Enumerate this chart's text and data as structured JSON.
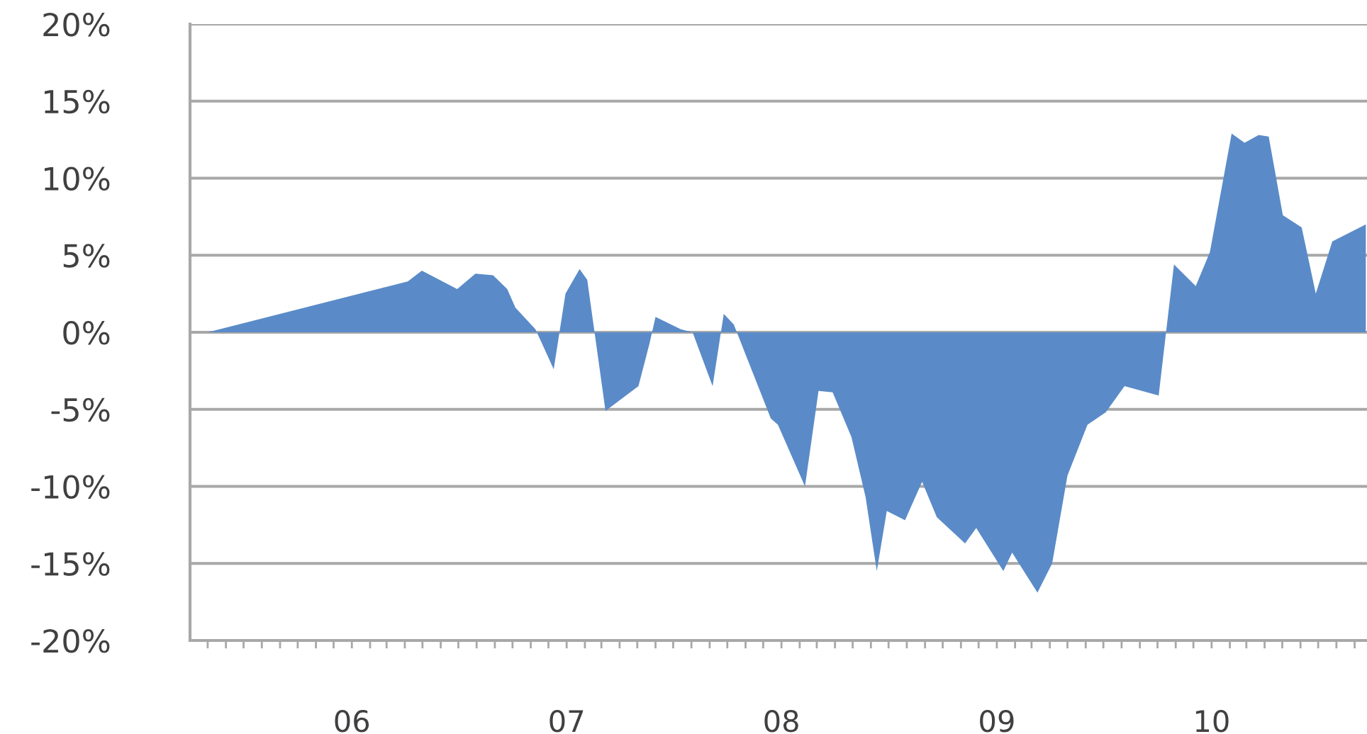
{
  "chart_data": {
    "type": "area",
    "color": "#5a8bc8",
    "x": [
      "2005-05-01",
      "2006-04-06",
      "2006-04-30",
      "2006-06-29",
      "2006-07-30",
      "2006-08-29",
      "2006-09-22",
      "2006-10-06",
      "2006-11-09",
      "2006-12-10",
      "2006-12-30",
      "2007-01-23",
      "2007-02-05",
      "2007-03-08",
      "2007-05-03",
      "2007-05-22",
      "2007-06-01",
      "2007-07-14",
      "2007-08-03",
      "2007-09-06",
      "2007-09-25",
      "2007-10-12",
      "2007-11-13",
      "2007-12-14",
      "2007-12-26",
      "2008-02-10",
      "2008-03-04",
      "2008-03-28",
      "2008-04-29",
      "2008-05-23",
      "2008-06-11",
      "2008-06-28",
      "2008-07-29",
      "2008-08-27",
      "2008-09-21",
      "2008-11-08",
      "2008-11-27",
      "2009-01-12",
      "2009-01-27",
      "2009-03-11",
      "2009-04-05",
      "2009-05-01",
      "2009-06-04",
      "2009-07-05",
      "2009-08-06",
      "2009-10-03",
      "2009-10-29",
      "2009-12-05",
      "2009-12-29",
      "2010-02-04",
      "2010-02-26",
      "2010-03-22",
      "2010-04-08",
      "2010-05-02",
      "2010-06-03",
      "2010-06-27",
      "2010-07-25",
      "2010-09-20"
    ],
    "values": [
      0,
      3.3,
      4.0,
      2.8,
      3.8,
      3.7,
      2.8,
      1.6,
      0.2,
      -2.4,
      2.5,
      4.1,
      3.4,
      -5.1,
      -3.5,
      -0.7,
      1.0,
      0.2,
      0,
      -3.5,
      1.2,
      0.5,
      -2.6,
      -5.6,
      -6.0,
      -10.0,
      -3.8,
      -3.9,
      -6.8,
      -10.7,
      -15.5,
      -11.6,
      -12.2,
      -9.7,
      -12.0,
      -13.7,
      -12.7,
      -15.5,
      -14.3,
      -16.9,
      -15.0,
      -9.3,
      -6.0,
      -5.2,
      -3.5,
      -4.1,
      4.4,
      3.0,
      5.2,
      12.9,
      12.3,
      12.8,
      12.7,
      7.6,
      6.8,
      2.5,
      5.9,
      7.0
    ],
    "xlim": [
      "2005-04-01",
      "2010-09-22"
    ],
    "xticks": [
      {
        "value": "2005-05-01",
        "label": null
      },
      {
        "value": "2005-06-01",
        "label": null
      },
      {
        "value": "2005-07-01",
        "label": null
      },
      {
        "value": "2005-08-01",
        "label": null
      },
      {
        "value": "2005-09-01",
        "label": null
      },
      {
        "value": "2005-10-01",
        "label": null
      },
      {
        "value": "2005-11-01",
        "label": null
      },
      {
        "value": "2005-12-01",
        "label": null
      },
      {
        "value": "2006-01-01",
        "label": "06"
      },
      {
        "value": "2006-02-01",
        "label": null
      },
      {
        "value": "2006-03-01",
        "label": null
      },
      {
        "value": "2006-04-01",
        "label": null
      },
      {
        "value": "2006-05-01",
        "label": null
      },
      {
        "value": "2006-06-01",
        "label": null
      },
      {
        "value": "2006-07-01",
        "label": null
      },
      {
        "value": "2006-08-01",
        "label": null
      },
      {
        "value": "2006-09-01",
        "label": null
      },
      {
        "value": "2006-10-01",
        "label": null
      },
      {
        "value": "2006-11-01",
        "label": null
      },
      {
        "value": "2006-12-01",
        "label": null
      },
      {
        "value": "2007-01-01",
        "label": "07"
      },
      {
        "value": "2007-02-01",
        "label": null
      },
      {
        "value": "2007-03-01",
        "label": null
      },
      {
        "value": "2007-04-01",
        "label": null
      },
      {
        "value": "2007-05-01",
        "label": null
      },
      {
        "value": "2007-06-01",
        "label": null
      },
      {
        "value": "2007-07-01",
        "label": null
      },
      {
        "value": "2007-08-01",
        "label": null
      },
      {
        "value": "2007-09-01",
        "label": null
      },
      {
        "value": "2007-10-01",
        "label": null
      },
      {
        "value": "2007-11-01",
        "label": null
      },
      {
        "value": "2007-12-01",
        "label": null
      },
      {
        "value": "2008-01-01",
        "label": "08"
      },
      {
        "value": "2008-02-01",
        "label": null
      },
      {
        "value": "2008-03-01",
        "label": null
      },
      {
        "value": "2008-04-01",
        "label": null
      },
      {
        "value": "2008-05-01",
        "label": null
      },
      {
        "value": "2008-06-01",
        "label": null
      },
      {
        "value": "2008-07-01",
        "label": null
      },
      {
        "value": "2008-08-01",
        "label": null
      },
      {
        "value": "2008-09-01",
        "label": null
      },
      {
        "value": "2008-10-01",
        "label": null
      },
      {
        "value": "2008-11-01",
        "label": null
      },
      {
        "value": "2008-12-01",
        "label": null
      },
      {
        "value": "2009-01-01",
        "label": "09"
      },
      {
        "value": "2009-02-01",
        "label": null
      },
      {
        "value": "2009-03-01",
        "label": null
      },
      {
        "value": "2009-04-01",
        "label": null
      },
      {
        "value": "2009-05-01",
        "label": null
      },
      {
        "value": "2009-06-01",
        "label": null
      },
      {
        "value": "2009-07-01",
        "label": null
      },
      {
        "value": "2009-08-01",
        "label": null
      },
      {
        "value": "2009-09-01",
        "label": null
      },
      {
        "value": "2009-10-01",
        "label": null
      },
      {
        "value": "2009-11-01",
        "label": null
      },
      {
        "value": "2009-12-01",
        "label": null
      },
      {
        "value": "2010-01-01",
        "label": "10"
      },
      {
        "value": "2010-02-01",
        "label": null
      },
      {
        "value": "2010-03-01",
        "label": null
      },
      {
        "value": "2010-04-01",
        "label": null
      },
      {
        "value": "2010-05-01",
        "label": null
      },
      {
        "value": "2010-06-01",
        "label": null
      },
      {
        "value": "2010-07-01",
        "label": null
      },
      {
        "value": "2010-08-01",
        "label": null
      },
      {
        "value": "2010-09-01",
        "label": null
      }
    ],
    "ylim": [
      -20,
      20
    ],
    "yticks": [
      {
        "value": -20,
        "label": "-20%"
      },
      {
        "value": -15,
        "label": "-15%"
      },
      {
        "value": -10,
        "label": "-10%"
      },
      {
        "value": -5,
        "label": "-5%"
      },
      {
        "value": 0,
        "label": "0%"
      },
      {
        "value": 5,
        "label": "5%"
      },
      {
        "value": 10,
        "label": "10%"
      },
      {
        "value": 15,
        "label": "15%"
      },
      {
        "value": 20,
        "label": "20%"
      }
    ],
    "grid": "y"
  }
}
